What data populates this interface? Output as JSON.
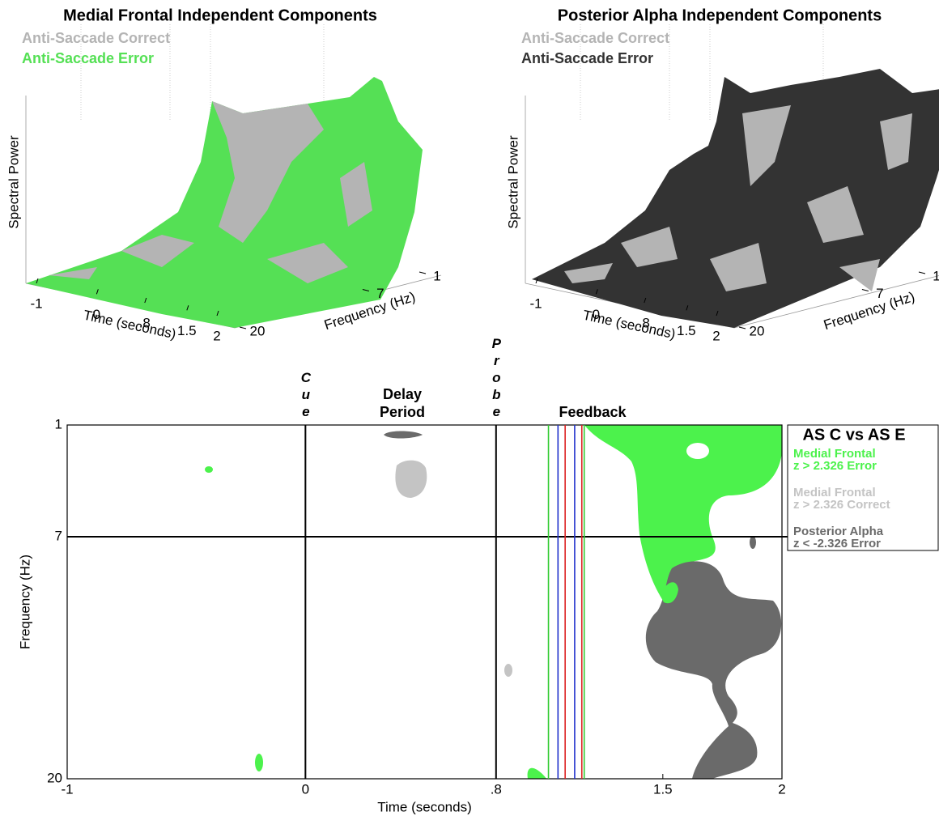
{
  "chart_data": [
    {
      "type": "surface3d",
      "title": "Medial Frontal Independent Components",
      "series": [
        {
          "name": "Anti-Saccade Correct",
          "color": "#b4b4b4"
        },
        {
          "name": "Anti-Saccade Error",
          "color": "#55e055"
        }
      ],
      "zlabel": "Spectral Power",
      "xlabel": "Time (seconds)",
      "ylabel": "Frequency (Hz)",
      "xlim": [
        -1,
        2
      ],
      "xticks": [
        -1,
        0,
        {
          "value": 0.8,
          "label": ".8"
        },
        1.5,
        2
      ],
      "ylim": [
        20,
        1
      ],
      "yticks": [
        1,
        7,
        20
      ]
    },
    {
      "type": "surface3d",
      "title": "Posterior Alpha Independent Components",
      "series": [
        {
          "name": "Anti-Saccade Correct",
          "color": "#b4b4b4"
        },
        {
          "name": "Anti-Saccade Error",
          "color": "#333333"
        }
      ],
      "zlabel": "Spectral Power",
      "xlabel": "Time (seconds)",
      "ylabel": "Frequency (Hz)",
      "xlim": [
        -1,
        2
      ],
      "xticks": [
        -1,
        0,
        {
          "value": 0.8,
          "label": ".8"
        },
        1.5,
        2
      ],
      "ylim": [
        20,
        1
      ],
      "yticks": [
        1,
        7,
        20
      ]
    },
    {
      "type": "contour",
      "xlabel": "Time (seconds)",
      "ylabel": "Frequency (Hz)",
      "xlim": [
        -1,
        2
      ],
      "xticks": [
        -1,
        0,
        {
          "value": 0.8,
          "label": ".8"
        },
        1.5,
        2
      ],
      "ylim": [
        20,
        1
      ],
      "yticks": [
        1,
        7,
        20
      ],
      "events": [
        {
          "label": "Cue",
          "x": 0
        },
        {
          "label": "Probe",
          "x": 0.8
        }
      ],
      "hline": 7,
      "annotations": [
        "Delay Period",
        "Feedback"
      ],
      "feedback_lines": [
        {
          "x": 1.02,
          "color": "#33cc33"
        },
        {
          "x": 1.06,
          "color": "#2233cc"
        },
        {
          "x": 1.09,
          "color": "#dd2222"
        },
        {
          "x": 1.13,
          "color": "#2233cc"
        },
        {
          "x": 1.16,
          "color": "#dd2222"
        },
        {
          "x": 1.17,
          "color": "#33cc33"
        }
      ],
      "legend_title": "AS C vs AS E",
      "series": [
        {
          "name": "Medial Frontal",
          "stat": "z > 2.326 Error",
          "color": "#4cf24c"
        },
        {
          "name": "Medial Frontal",
          "stat": "z > 2.326 Correct",
          "color": "#c4c4c4"
        },
        {
          "name": "Posterior Alpha",
          "stat": "z < -2.326 Error",
          "color": "#6a6a6a"
        }
      ]
    }
  ]
}
